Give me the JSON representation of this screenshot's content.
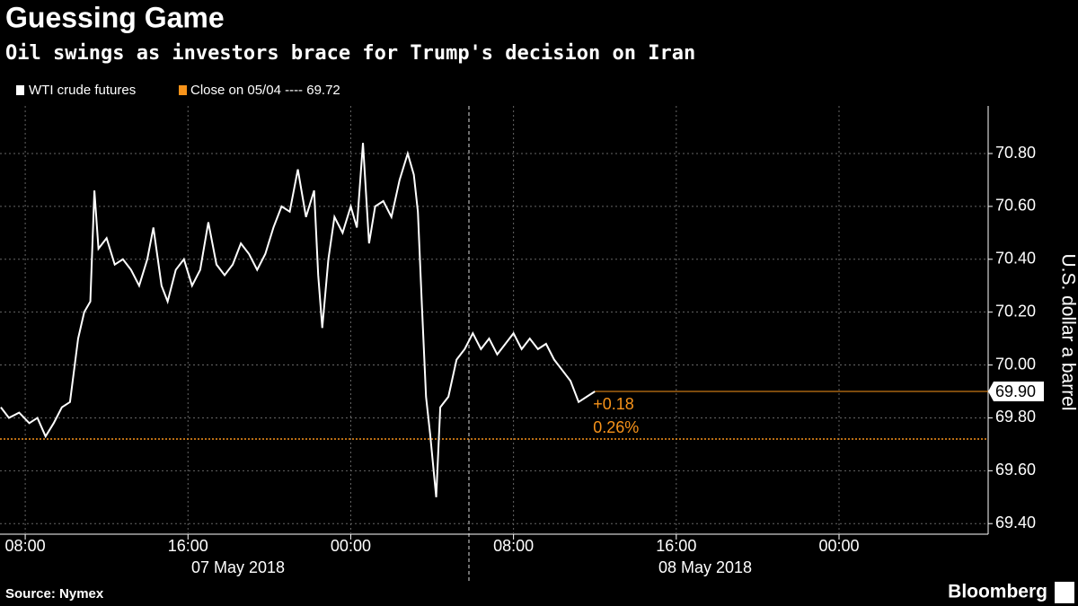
{
  "chart_data": {
    "type": "line",
    "title": "Guessing Game",
    "subtitle": "Oil swings as investors brace for Trump's decision on Iran",
    "y_axis_label": "U.S. dollar a barrel",
    "source": "Source: Nymex",
    "brand": "Bloomberg",
    "dates": [
      "07 May 2018",
      "08 May 2018"
    ],
    "x": [
      6.8,
      7.2,
      7.7,
      8.2,
      8.6,
      9.0,
      9.4,
      9.8,
      10.2,
      10.6,
      10.9,
      11.2,
      11.4,
      11.6,
      12.0,
      12.4,
      12.8,
      13.2,
      13.6,
      14.0,
      14.3,
      14.7,
      15.0,
      15.4,
      15.8,
      16.2,
      16.6,
      17.0,
      17.4,
      17.8,
      18.2,
      18.6,
      19.0,
      19.4,
      19.8,
      20.2,
      20.6,
      21.0,
      21.4,
      21.8,
      22.2,
      22.4,
      22.6,
      22.9,
      23.2,
      23.6,
      24.0,
      24.3,
      24.6,
      24.9,
      25.2,
      25.6,
      26.0,
      26.4,
      26.8,
      27.1,
      27.3,
      27.5,
      27.7,
      27.9,
      28.2,
      28.4,
      28.8,
      29.2,
      29.6,
      30.0,
      30.4,
      30.8,
      31.2,
      31.6,
      32.0,
      32.4,
      32.8,
      33.2,
      33.6,
      34.0,
      34.4,
      34.8,
      35.2,
      35.6,
      36.0
    ],
    "series": [
      {
        "name": "WTI crude futures",
        "color": "#ffffff",
        "values": [
          69.84,
          69.8,
          69.82,
          69.78,
          69.8,
          69.73,
          69.78,
          69.84,
          69.86,
          70.1,
          70.2,
          70.24,
          70.66,
          70.44,
          70.48,
          70.38,
          70.4,
          70.36,
          70.3,
          70.4,
          70.52,
          70.3,
          70.24,
          70.36,
          70.4,
          70.3,
          70.36,
          70.54,
          70.38,
          70.34,
          70.38,
          70.46,
          70.42,
          70.36,
          70.42,
          70.52,
          70.6,
          70.58,
          70.74,
          70.56,
          70.66,
          70.34,
          70.14,
          70.4,
          70.56,
          70.5,
          70.6,
          70.52,
          70.84,
          70.46,
          70.6,
          70.62,
          70.56,
          70.7,
          70.8,
          70.72,
          70.58,
          70.22,
          69.88,
          69.74,
          69.5,
          69.84,
          69.88,
          70.02,
          70.06,
          70.12,
          70.06,
          70.1,
          70.04,
          70.08,
          70.12,
          70.06,
          70.1,
          70.06,
          70.08,
          70.02,
          69.98,
          69.94,
          69.86,
          69.88,
          69.9
        ]
      }
    ],
    "reference_line": {
      "name": "Close on 05/04 ---- 69.72",
      "value": 69.72,
      "color": "#f7931a"
    },
    "last_price": {
      "value": 69.9,
      "label": "69.90"
    },
    "change": "+0.18",
    "change_pct": "0.26%",
    "xlim": [
      6.76,
      55.33
    ],
    "xticks": [
      {
        "value": 8,
        "label": "08:00"
      },
      {
        "value": 16,
        "label": "16:00"
      },
      {
        "value": 24,
        "label": "00:00"
      },
      {
        "value": 32,
        "label": "08:00"
      },
      {
        "value": 40,
        "label": "16:00"
      },
      {
        "value": 48,
        "label": "00:00"
      }
    ],
    "ylim": [
      69.36,
      70.98
    ],
    "yticks": [
      {
        "value": 69.4,
        "label": "69.40"
      },
      {
        "value": 69.6,
        "label": "69.60"
      },
      {
        "value": 69.8,
        "label": "69.80"
      },
      {
        "value": 70.0,
        "label": "70.00"
      },
      {
        "value": 70.2,
        "label": "70.20"
      },
      {
        "value": 70.4,
        "label": "70.40"
      },
      {
        "value": 70.6,
        "label": "70.60"
      },
      {
        "value": 70.8,
        "label": "70.80"
      }
    ],
    "grid": true
  }
}
